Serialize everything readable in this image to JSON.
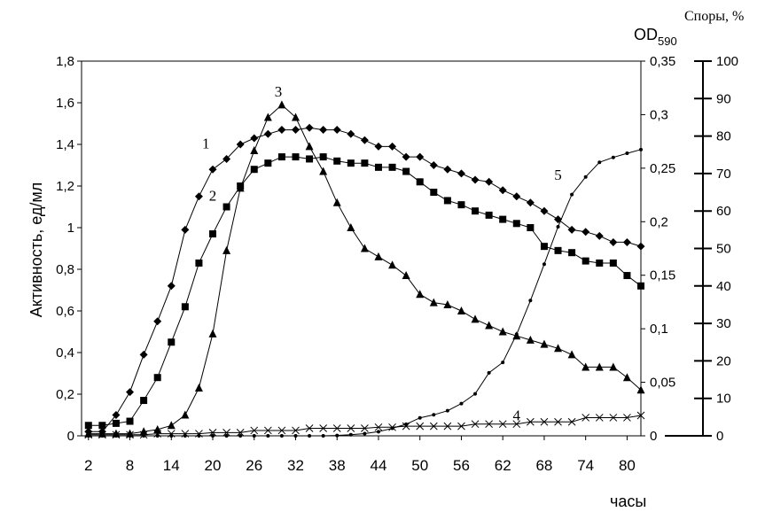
{
  "chart_data": {
    "type": "line",
    "ylabel": "Активность, ед/мл",
    "y2label": "OD",
    "y2label_sub": "590",
    "y3label": "Споры, %",
    "xlabel": "часы",
    "x_ticks": [
      2,
      8,
      14,
      20,
      26,
      32,
      38,
      44,
      50,
      56,
      62,
      68,
      74,
      80
    ],
    "xlim": [
      1,
      82
    ],
    "ylim": [
      0,
      1.8
    ],
    "y_ticks": [
      "0",
      "0,2",
      "0,4",
      "0,6",
      "0,8",
      "1",
      "1,2",
      "1,4",
      "1,6",
      "1,8"
    ],
    "y2lim": [
      0,
      0.35
    ],
    "y2_ticks": [
      "0",
      "0,05",
      "0,1",
      "0,15",
      "0,2",
      "0,25",
      "0,3",
      "0,35"
    ],
    "y3lim": [
      0,
      100
    ],
    "y3_ticks": [
      "0",
      "10",
      "20",
      "30",
      "40",
      "50",
      "60",
      "70",
      "80",
      "90",
      "100"
    ],
    "grid": false,
    "series": [
      {
        "label": "1",
        "marker": "diamond",
        "axis": "y",
        "x": [
          2,
          4,
          6,
          8,
          10,
          12,
          14,
          16,
          18,
          20,
          22,
          24,
          26,
          28,
          30,
          32,
          34,
          36,
          38,
          40,
          42,
          44,
          46,
          48,
          50,
          52,
          54,
          56,
          58,
          60,
          62,
          64,
          66,
          68,
          70,
          72,
          74,
          76,
          78,
          80,
          82
        ],
        "values": [
          0.02,
          0.02,
          0.1,
          0.21,
          0.39,
          0.55,
          0.72,
          0.99,
          1.15,
          1.28,
          1.33,
          1.4,
          1.43,
          1.45,
          1.47,
          1.47,
          1.48,
          1.47,
          1.47,
          1.45,
          1.42,
          1.39,
          1.39,
          1.34,
          1.34,
          1.3,
          1.28,
          1.26,
          1.23,
          1.22,
          1.18,
          1.15,
          1.12,
          1.08,
          1.04,
          0.99,
          0.98,
          0.96,
          0.93,
          0.93,
          0.91
        ]
      },
      {
        "label": "2",
        "marker": "square",
        "axis": "y",
        "x": [
          2,
          4,
          6,
          8,
          10,
          12,
          14,
          16,
          18,
          20,
          22,
          24,
          26,
          28,
          30,
          32,
          34,
          36,
          38,
          40,
          42,
          44,
          46,
          48,
          50,
          52,
          54,
          56,
          58,
          60,
          62,
          64,
          66,
          68,
          70,
          72,
          74,
          76,
          78,
          80,
          82
        ],
        "values": [
          0.05,
          0.05,
          0.06,
          0.07,
          0.17,
          0.28,
          0.45,
          0.62,
          0.83,
          0.97,
          1.1,
          1.2,
          1.28,
          1.31,
          1.34,
          1.34,
          1.33,
          1.34,
          1.32,
          1.31,
          1.31,
          1.29,
          1.29,
          1.27,
          1.22,
          1.17,
          1.13,
          1.11,
          1.08,
          1.06,
          1.04,
          1.02,
          1.0,
          0.91,
          0.89,
          0.88,
          0.84,
          0.83,
          0.83,
          0.77,
          0.72
        ]
      },
      {
        "label": "3",
        "marker": "triangle",
        "axis": "y",
        "x": [
          2,
          4,
          6,
          8,
          10,
          12,
          14,
          16,
          18,
          20,
          22,
          24,
          26,
          28,
          30,
          32,
          34,
          36,
          38,
          40,
          42,
          44,
          46,
          48,
          50,
          52,
          54,
          56,
          58,
          60,
          62,
          64,
          66,
          68,
          70,
          72,
          74,
          76,
          78,
          80,
          82
        ],
        "values": [
          0.01,
          0.01,
          0.01,
          0.01,
          0.02,
          0.03,
          0.05,
          0.1,
          0.23,
          0.49,
          0.89,
          1.19,
          1.37,
          1.53,
          1.59,
          1.53,
          1.39,
          1.27,
          1.12,
          1.0,
          0.9,
          0.86,
          0.82,
          0.77,
          0.68,
          0.64,
          0.63,
          0.6,
          0.56,
          0.53,
          0.5,
          0.48,
          0.46,
          0.44,
          0.42,
          0.39,
          0.33,
          0.33,
          0.33,
          0.28,
          0.22
        ]
      },
      {
        "label": "4",
        "marker": "cross",
        "axis": "y2",
        "x": [
          2,
          4,
          6,
          8,
          10,
          12,
          14,
          16,
          18,
          20,
          22,
          24,
          26,
          28,
          30,
          32,
          34,
          36,
          38,
          40,
          42,
          44,
          46,
          48,
          50,
          52,
          54,
          56,
          58,
          60,
          62,
          64,
          66,
          68,
          70,
          72,
          74,
          76,
          78,
          80,
          82
        ],
        "values": [
          0.001,
          0.001,
          0.001,
          0.001,
          0.001,
          0.002,
          0.002,
          0.002,
          0.002,
          0.003,
          0.003,
          0.003,
          0.005,
          0.005,
          0.005,
          0.005,
          0.007,
          0.007,
          0.007,
          0.007,
          0.007,
          0.008,
          0.008,
          0.009,
          0.009,
          0.009,
          0.009,
          0.009,
          0.011,
          0.011,
          0.011,
          0.011,
          0.013,
          0.013,
          0.013,
          0.013,
          0.017,
          0.017,
          0.017,
          0.017,
          0.019
        ]
      },
      {
        "label": "5",
        "marker": "dot",
        "axis": "y3",
        "x": [
          2,
          4,
          6,
          8,
          10,
          12,
          14,
          16,
          18,
          20,
          22,
          24,
          26,
          28,
          30,
          32,
          34,
          36,
          38,
          40,
          42,
          44,
          46,
          48,
          50,
          52,
          54,
          56,
          58,
          60,
          62,
          64,
          66,
          68,
          70,
          72,
          74,
          76,
          78,
          80,
          82
        ],
        "values": [
          0,
          0,
          0,
          0,
          0,
          0,
          0,
          0,
          0,
          0,
          0,
          0,
          0,
          0,
          0,
          0,
          0,
          0,
          0.1,
          0.3,
          0.6,
          1.1,
          2.0,
          3.1,
          4.8,
          5.6,
          6.7,
          8.6,
          11.2,
          16.8,
          19.6,
          27.1,
          36.1,
          45.8,
          55.8,
          64.4,
          69.1,
          73.0,
          74.3,
          75.4,
          76.4
        ]
      }
    ],
    "annotations": [
      {
        "text": "1",
        "x": 19,
        "y": 1.38
      },
      {
        "text": "2",
        "x": 20,
        "y": 1.13
      },
      {
        "text": "3",
        "x": 29.5,
        "y": 1.63
      },
      {
        "text": "4",
        "x": 64,
        "y": 0.075
      },
      {
        "text": "5",
        "x": 70,
        "y": 1.23
      }
    ]
  }
}
